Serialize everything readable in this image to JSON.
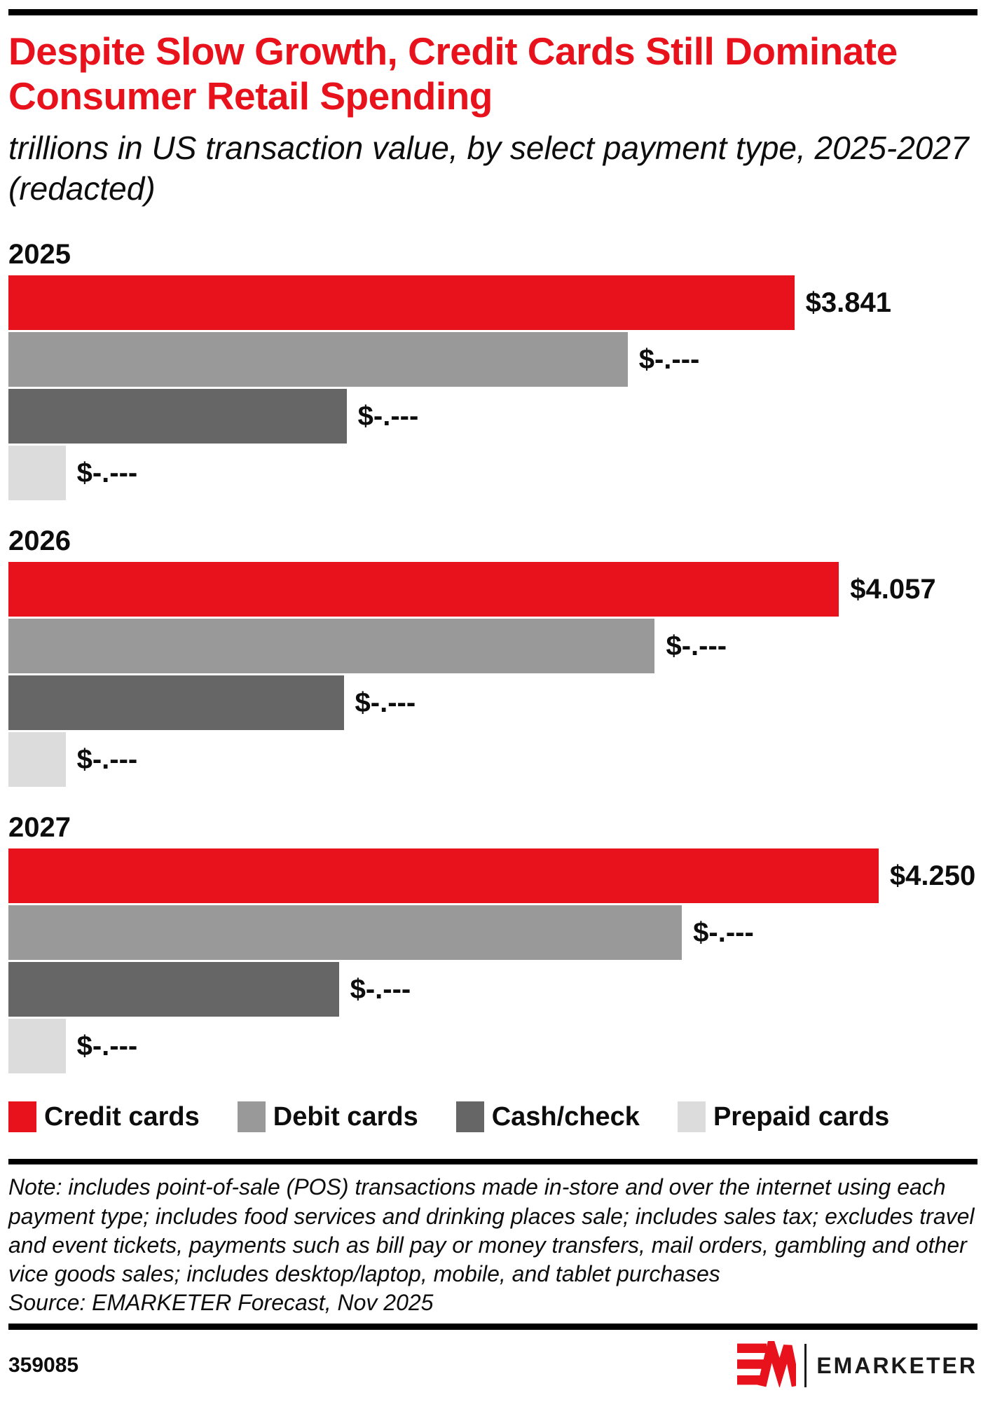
{
  "header": {
    "title": "Despite Slow Growth, Credit Cards Still Dominate Consumer Retail Spending",
    "subtitle": "trillions in US transaction value, by select payment type, 2025-2027 (redacted)"
  },
  "colors": {
    "accent_red": "#e8121c",
    "debit_gray": "#999999",
    "cash_gray": "#666666",
    "prepaid_gray": "#dcdcdc",
    "rule_black": "#000000"
  },
  "chart_data": {
    "type": "bar",
    "orientation": "horizontal",
    "unit": "trillions in US transaction value",
    "categories": [
      "2025",
      "2026",
      "2027"
    ],
    "series": [
      {
        "name": "Credit cards",
        "color": "#e8121c",
        "values": [
          3.841,
          4.057,
          4.25
        ],
        "labels": [
          "$3.841",
          "$4.057",
          "$4.250"
        ]
      },
      {
        "name": "Debit cards",
        "color": "#999999",
        "values": [
          null,
          null,
          null
        ],
        "labels": [
          "$-.---",
          "$-.---",
          "$-.---"
        ]
      },
      {
        "name": "Cash/check",
        "color": "#666666",
        "values": [
          null,
          null,
          null
        ],
        "labels": [
          "$-.---",
          "$-.---",
          "$-.---"
        ]
      },
      {
        "name": "Prepaid cards",
        "color": "#dcdcdc",
        "values": [
          null,
          null,
          null
        ],
        "labels": [
          "$-.---",
          "$-.---",
          "$-.---"
        ]
      }
    ],
    "bar_fractions": [
      [
        0.811,
        0.639,
        0.349,
        0.059
      ],
      [
        0.857,
        0.667,
        0.346,
        0.059
      ],
      [
        0.898,
        0.695,
        0.341,
        0.059
      ]
    ],
    "legend_position": "bottom",
    "grid": false,
    "value_axis_hidden": true
  },
  "legend": {
    "items": [
      {
        "label": "Credit cards",
        "color": "#e8121c"
      },
      {
        "label": "Debit cards",
        "color": "#999999"
      },
      {
        "label": "Cash/check",
        "color": "#666666"
      },
      {
        "label": "Prepaid cards",
        "color": "#dcdcdc"
      }
    ]
  },
  "footnote": {
    "note": "Note: includes point-of-sale (POS) transactions made in-store and over the internet using each payment type; includes food services and drinking places sale; includes sales tax; excludes travel and event tickets, payments such as bill pay or money transfers, mail orders, gambling and other vice goods sales; includes desktop/laptop, mobile, and tablet purchases",
    "source": "Source: EMARKETER Forecast, Nov 2025"
  },
  "footer": {
    "chart_id": "359085",
    "logo_mark": "EM-logo-mark",
    "logo_text": "EMARKETER"
  }
}
